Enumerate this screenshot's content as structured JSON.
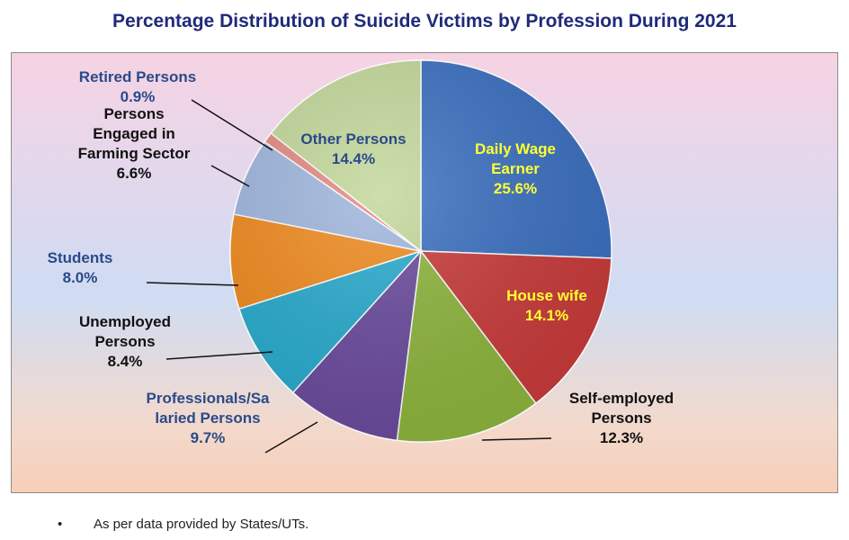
{
  "chart_data": {
    "type": "pie",
    "title": "Percentage Distribution of Suicide Victims by Profession During 2021",
    "slices": [
      {
        "name": "Daily Wage Earner",
        "label_lines": [
          "Daily Wage",
          "Earner"
        ],
        "value": 25.6,
        "value_label": "25.6%",
        "color": "#3a6fc0",
        "text_color": "#ffff33"
      },
      {
        "name": "House wife",
        "label_lines": [
          "House wife"
        ],
        "value": 14.1,
        "value_label": "14.1%",
        "color": "#c83a3a",
        "text_color": "#ffff33"
      },
      {
        "name": "Self-employed Persons",
        "label_lines": [
          "Self-employed",
          "Persons"
        ],
        "value": 12.3,
        "value_label": "12.3%",
        "color": "#8db43c",
        "text_color": "#111111"
      },
      {
        "name": "Professionals/Salaried Persons",
        "label_lines": [
          "Professionals/Sa",
          "laried Persons"
        ],
        "value": 9.7,
        "value_label": "9.7%",
        "color": "#6a4a9c",
        "text_color": "#2a4a8a"
      },
      {
        "name": "Unemployed Persons",
        "label_lines": [
          "Unemployed",
          "Persons"
        ],
        "value": 8.4,
        "value_label": "8.4%",
        "color": "#27aacd",
        "text_color": "#111111"
      },
      {
        "name": "Students",
        "label_lines": [
          "Students"
        ],
        "value": 8.0,
        "value_label": "8.0%",
        "color": "#f08a1e",
        "text_color": "#2a4a8a"
      },
      {
        "name": "Persons Engaged in Farming Sector",
        "label_lines": [
          "Persons",
          "Engaged in",
          "Farming Sector"
        ],
        "value": 6.6,
        "value_label": "6.6%",
        "color": "#9fb6de",
        "text_color": "#111111"
      },
      {
        "name": "Retired Persons",
        "label_lines": [
          "Retired Persons"
        ],
        "value": 0.9,
        "value_label": "0.9%",
        "color": "#e58a84",
        "text_color": "#2a4a8a"
      },
      {
        "name": "Other Persons",
        "label_lines": [
          "Other Persons"
        ],
        "value": 14.4,
        "value_label": "14.4%",
        "color": "#c3d89a",
        "text_color": "#2a4a8a"
      }
    ],
    "start_angle_deg": 0,
    "direction": "clockwise"
  },
  "footnote": {
    "bullet": "•",
    "text": "As per data provided by States/UTs."
  }
}
